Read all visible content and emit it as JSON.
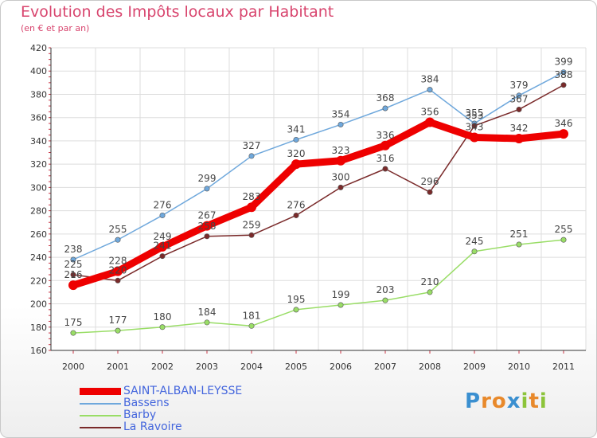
{
  "header": {
    "title": "Evolution des Impôts locaux par Habitant",
    "subtitle": "(en € et par an)"
  },
  "logo": {
    "text": "Proxiti"
  },
  "chart_data": {
    "type": "line",
    "x": [
      "2000",
      "2001",
      "2002",
      "2003",
      "2004",
      "2005",
      "2006",
      "2007",
      "2008",
      "2009",
      "2010",
      "2011"
    ],
    "ylim": [
      160,
      420
    ],
    "yticks": [
      160,
      180,
      200,
      220,
      240,
      260,
      280,
      300,
      320,
      340,
      360,
      380,
      400,
      420
    ],
    "grid": true,
    "legend_position": "bottom-left",
    "series": [
      {
        "name": "SAINT-ALBAN-LEYSSE",
        "color": "#ee0000",
        "values": [
          216,
          228,
          249,
          267,
          283,
          320,
          323,
          336,
          356,
          343,
          342,
          346
        ]
      },
      {
        "name": "Bassens",
        "color": "#6fa8dc",
        "values": [
          238,
          255,
          276,
          299,
          327,
          341,
          354,
          368,
          384,
          355,
          379,
          399
        ]
      },
      {
        "name": "Barby",
        "color": "#99dd66",
        "values": [
          175,
          177,
          180,
          184,
          181,
          195,
          199,
          203,
          210,
          245,
          251,
          255
        ]
      },
      {
        "name": "La Ravoire",
        "color": "#7a2a2a",
        "values": [
          225,
          220,
          241,
          258,
          259,
          276,
          300,
          316,
          296,
          353,
          367,
          388
        ]
      }
    ]
  }
}
